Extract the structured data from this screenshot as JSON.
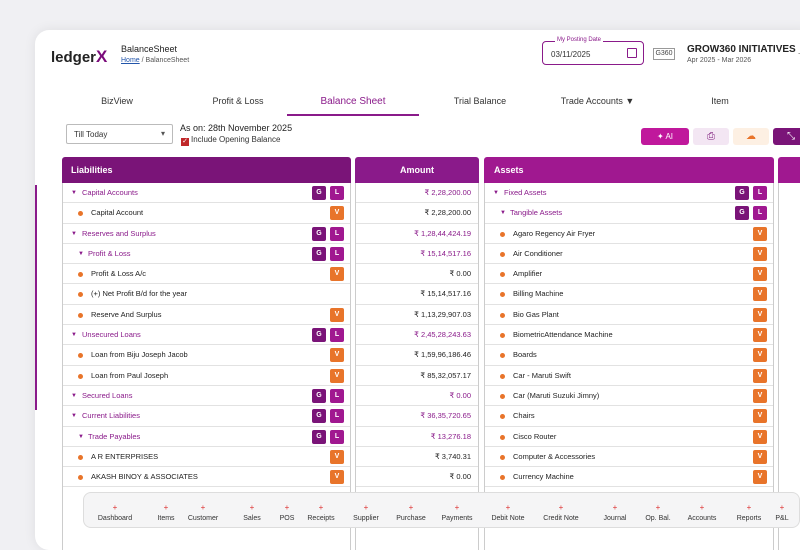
{
  "app": {
    "logo_text": "ledger",
    "logo_x": "X",
    "page_title": "BalanceSheet"
  },
  "breadcrumb": {
    "home": "Home",
    "sep": "/",
    "current": "BalanceSheet"
  },
  "posting_date": {
    "label": "My Posting Date",
    "value": "03/11/2025"
  },
  "company": {
    "icon_text": "G360",
    "name": "GROW360 INITIATIVES _",
    "fy": "Apr 2025 - Mar 2026"
  },
  "tabs": [
    "BizView",
    "Profit & Loss",
    "Balance Sheet",
    "Trial Balance",
    "Trade Accounts ▼",
    "Item"
  ],
  "active_tab": "Balance Sheet",
  "filter": {
    "period": "Till Today",
    "as_on": "As on: 28th November 2025",
    "include_opening": "Include Opening Balance"
  },
  "toolbar": {
    "ai_label": "AI"
  },
  "headers": {
    "liabilities": "Liabilities",
    "amount": "Amount",
    "assets": "Assets"
  },
  "liabilities": [
    {
      "label": "Capital Accounts",
      "type": "grp",
      "level": 0,
      "badges": [
        "G",
        "L"
      ],
      "amount": "₹ 2,28,200.00"
    },
    {
      "label": "Capital Account",
      "type": "leaf",
      "badges": [
        "V"
      ],
      "amount": "₹ 2,28,200.00"
    },
    {
      "label": "Reserves and Surplus",
      "type": "grp",
      "level": 0,
      "badges": [
        "G",
        "L"
      ],
      "amount": "₹ 1,28,44,424.19"
    },
    {
      "label": "Profit & Loss",
      "type": "grp",
      "level": 1,
      "badges": [
        "G",
        "L"
      ],
      "amount": "₹ 15,14,517.16"
    },
    {
      "label": "Profit & Loss A/c",
      "type": "leaf",
      "badges": [
        "V"
      ],
      "amount": "₹ 0.00"
    },
    {
      "label": "(+) Net Profit B/d for the year",
      "type": "leaf",
      "badges": [],
      "amount": "₹ 15,14,517.16"
    },
    {
      "label": "Reserve And Surplus",
      "type": "leaf",
      "badges": [
        "V"
      ],
      "amount": "₹ 1,13,29,907.03"
    },
    {
      "label": "Unsecured Loans",
      "type": "grp",
      "level": 0,
      "badges": [
        "G",
        "L"
      ],
      "amount": "₹ 2,45,28,243.63"
    },
    {
      "label": "Loan from Biju Joseph Jacob",
      "type": "leaf",
      "badges": [
        "V"
      ],
      "amount": "₹ 1,59,96,186.46"
    },
    {
      "label": "Loan from Paul Joseph",
      "type": "leaf",
      "badges": [
        "V"
      ],
      "amount": "₹ 85,32,057.17"
    },
    {
      "label": "Secured Loans",
      "type": "grp",
      "level": 0,
      "badges": [
        "G",
        "L"
      ],
      "amount": "₹ 0.00"
    },
    {
      "label": "Current Liabilities",
      "type": "grp",
      "level": 0,
      "badges": [
        "G",
        "L"
      ],
      "amount": "₹ 36,35,720.65"
    },
    {
      "label": "Trade Payables",
      "type": "grp",
      "level": 1,
      "badges": [
        "G",
        "L"
      ],
      "amount": "₹ 13,276.18"
    },
    {
      "label": "A R ENTERPRISES",
      "type": "leaf",
      "badges": [
        "V"
      ],
      "amount": "₹ 3,740.31"
    },
    {
      "label": "AKASH BINOY & ASSOCIATES",
      "type": "leaf",
      "badges": [
        "V"
      ],
      "amount": "₹ 0.00"
    }
  ],
  "assets": [
    {
      "label": "Fixed Assets",
      "type": "grp",
      "level": 0,
      "badges": [
        "G",
        "L"
      ]
    },
    {
      "label": "Tangible Assets",
      "type": "grp",
      "level": 1,
      "badges": [
        "G",
        "L"
      ]
    },
    {
      "label": "Agaro Regency Air Fryer",
      "type": "leaf",
      "badges": [
        "V"
      ]
    },
    {
      "label": "Air Conditioner",
      "type": "leaf",
      "badges": [
        "V"
      ]
    },
    {
      "label": "Amplifier",
      "type": "leaf",
      "badges": [
        "V"
      ]
    },
    {
      "label": "Billing Machine",
      "type": "leaf",
      "badges": [
        "V"
      ]
    },
    {
      "label": "Bio Gas Plant",
      "type": "leaf",
      "badges": [
        "V"
      ]
    },
    {
      "label": "BiometricAttendance Machine",
      "type": "leaf",
      "badges": [
        "V"
      ]
    },
    {
      "label": "Boards",
      "type": "leaf",
      "badges": [
        "V"
      ]
    },
    {
      "label": "Car - Maruti Swift",
      "type": "leaf",
      "badges": [
        "V"
      ]
    },
    {
      "label": "Car (Maruti Suzuki Jimny)",
      "type": "leaf",
      "badges": [
        "V"
      ]
    },
    {
      "label": "Chairs",
      "type": "leaf",
      "badges": [
        "V"
      ]
    },
    {
      "label": "Cisco Router",
      "type": "leaf",
      "badges": [
        "V"
      ]
    },
    {
      "label": "Computer & Accessories",
      "type": "leaf",
      "badges": [
        "V"
      ]
    },
    {
      "label": "Currency Machine",
      "type": "leaf",
      "badges": [
        "V"
      ]
    }
  ],
  "bottom_nav": [
    "Dashboard",
    "Items",
    "Customer",
    "Sales",
    "POS",
    "Receipts",
    "Supplier",
    "Purchase",
    "Payments",
    "Debit Note",
    "Credit Note",
    "Journal",
    "Op. Bal.",
    "Accounts",
    "Reports",
    "P&L"
  ],
  "bottom_nav_plus": "+",
  "colors": {
    "brand": "#8a1a8a",
    "voucher": "#e8742a",
    "ai": "#c0189c"
  }
}
